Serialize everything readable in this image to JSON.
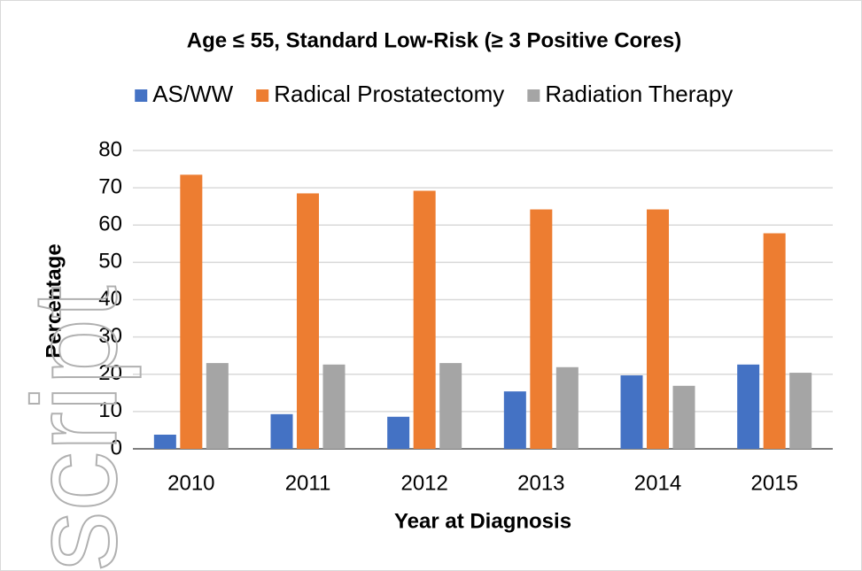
{
  "chart_data": {
    "type": "bar",
    "title": "Age ≤ 55, Standard Low-Risk (≥ 3 Positive Cores)",
    "xlabel": "Year at Diagnosis",
    "ylabel": "Percentage",
    "watermark": "script",
    "categories": [
      "2010",
      "2011",
      "2012",
      "2013",
      "2014",
      "2015"
    ],
    "series": [
      {
        "name": "AS/WW",
        "color": "#4472c4",
        "values": [
          3.8,
          9.3,
          8.6,
          15.4,
          19.7,
          22.6
        ]
      },
      {
        "name": "Radical Prostatectomy",
        "color": "#ed7d31",
        "values": [
          73.5,
          68.5,
          69.2,
          64.2,
          64.2,
          57.8
        ]
      },
      {
        "name": "Radiation Therapy",
        "color": "#a5a5a5",
        "values": [
          23,
          22.6,
          23,
          21.9,
          16.9,
          20.4
        ]
      }
    ],
    "ylim": [
      0,
      80
    ],
    "yticks": [
      0,
      10,
      20,
      30,
      40,
      50,
      60,
      70,
      80
    ],
    "grid": true,
    "legend": "top"
  }
}
